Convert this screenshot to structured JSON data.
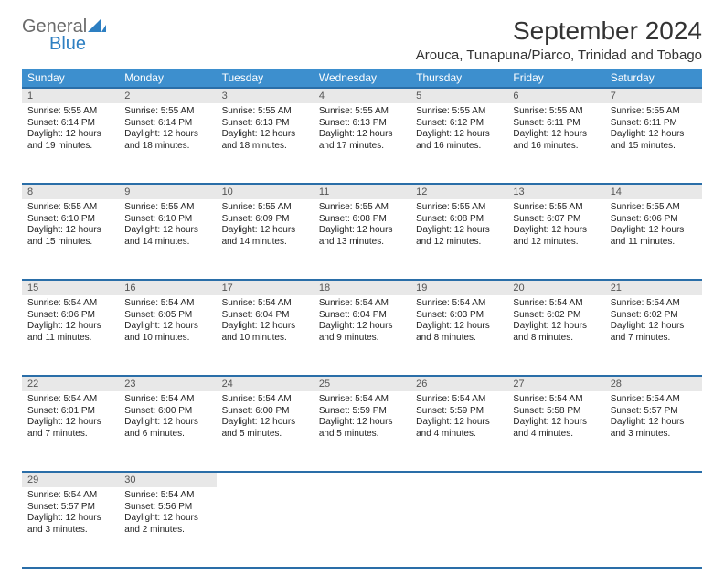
{
  "logo": {
    "part1": "General",
    "part2": "Blue"
  },
  "title": "September 2024",
  "location": "Arouca, Tunapuna/Piarco, Trinidad and Tobago",
  "colors": {
    "header_bg": "#3d8fce",
    "header_border": "#2a6ea8",
    "daynum_bg": "#e8e8e8",
    "logo_gray": "#6a6a6a",
    "logo_blue": "#2d7fc2"
  },
  "weekdays": [
    "Sunday",
    "Monday",
    "Tuesday",
    "Wednesday",
    "Thursday",
    "Friday",
    "Saturday"
  ],
  "weeks": [
    [
      {
        "n": "1",
        "sr": "5:55 AM",
        "ss": "6:14 PM",
        "dl": "12 hours and 19 minutes."
      },
      {
        "n": "2",
        "sr": "5:55 AM",
        "ss": "6:14 PM",
        "dl": "12 hours and 18 minutes."
      },
      {
        "n": "3",
        "sr": "5:55 AM",
        "ss": "6:13 PM",
        "dl": "12 hours and 18 minutes."
      },
      {
        "n": "4",
        "sr": "5:55 AM",
        "ss": "6:13 PM",
        "dl": "12 hours and 17 minutes."
      },
      {
        "n": "5",
        "sr": "5:55 AM",
        "ss": "6:12 PM",
        "dl": "12 hours and 16 minutes."
      },
      {
        "n": "6",
        "sr": "5:55 AM",
        "ss": "6:11 PM",
        "dl": "12 hours and 16 minutes."
      },
      {
        "n": "7",
        "sr": "5:55 AM",
        "ss": "6:11 PM",
        "dl": "12 hours and 15 minutes."
      }
    ],
    [
      {
        "n": "8",
        "sr": "5:55 AM",
        "ss": "6:10 PM",
        "dl": "12 hours and 15 minutes."
      },
      {
        "n": "9",
        "sr": "5:55 AM",
        "ss": "6:10 PM",
        "dl": "12 hours and 14 minutes."
      },
      {
        "n": "10",
        "sr": "5:55 AM",
        "ss": "6:09 PM",
        "dl": "12 hours and 14 minutes."
      },
      {
        "n": "11",
        "sr": "5:55 AM",
        "ss": "6:08 PM",
        "dl": "12 hours and 13 minutes."
      },
      {
        "n": "12",
        "sr": "5:55 AM",
        "ss": "6:08 PM",
        "dl": "12 hours and 12 minutes."
      },
      {
        "n": "13",
        "sr": "5:55 AM",
        "ss": "6:07 PM",
        "dl": "12 hours and 12 minutes."
      },
      {
        "n": "14",
        "sr": "5:55 AM",
        "ss": "6:06 PM",
        "dl": "12 hours and 11 minutes."
      }
    ],
    [
      {
        "n": "15",
        "sr": "5:54 AM",
        "ss": "6:06 PM",
        "dl": "12 hours and 11 minutes."
      },
      {
        "n": "16",
        "sr": "5:54 AM",
        "ss": "6:05 PM",
        "dl": "12 hours and 10 minutes."
      },
      {
        "n": "17",
        "sr": "5:54 AM",
        "ss": "6:04 PM",
        "dl": "12 hours and 10 minutes."
      },
      {
        "n": "18",
        "sr": "5:54 AM",
        "ss": "6:04 PM",
        "dl": "12 hours and 9 minutes."
      },
      {
        "n": "19",
        "sr": "5:54 AM",
        "ss": "6:03 PM",
        "dl": "12 hours and 8 minutes."
      },
      {
        "n": "20",
        "sr": "5:54 AM",
        "ss": "6:02 PM",
        "dl": "12 hours and 8 minutes."
      },
      {
        "n": "21",
        "sr": "5:54 AM",
        "ss": "6:02 PM",
        "dl": "12 hours and 7 minutes."
      }
    ],
    [
      {
        "n": "22",
        "sr": "5:54 AM",
        "ss": "6:01 PM",
        "dl": "12 hours and 7 minutes."
      },
      {
        "n": "23",
        "sr": "5:54 AM",
        "ss": "6:00 PM",
        "dl": "12 hours and 6 minutes."
      },
      {
        "n": "24",
        "sr": "5:54 AM",
        "ss": "6:00 PM",
        "dl": "12 hours and 5 minutes."
      },
      {
        "n": "25",
        "sr": "5:54 AM",
        "ss": "5:59 PM",
        "dl": "12 hours and 5 minutes."
      },
      {
        "n": "26",
        "sr": "5:54 AM",
        "ss": "5:59 PM",
        "dl": "12 hours and 4 minutes."
      },
      {
        "n": "27",
        "sr": "5:54 AM",
        "ss": "5:58 PM",
        "dl": "12 hours and 4 minutes."
      },
      {
        "n": "28",
        "sr": "5:54 AM",
        "ss": "5:57 PM",
        "dl": "12 hours and 3 minutes."
      }
    ],
    [
      {
        "n": "29",
        "sr": "5:54 AM",
        "ss": "5:57 PM",
        "dl": "12 hours and 3 minutes."
      },
      {
        "n": "30",
        "sr": "5:54 AM",
        "ss": "5:56 PM",
        "dl": "12 hours and 2 minutes."
      },
      null,
      null,
      null,
      null,
      null
    ]
  ],
  "labels": {
    "sunrise": "Sunrise:",
    "sunset": "Sunset:",
    "daylight": "Daylight:"
  }
}
